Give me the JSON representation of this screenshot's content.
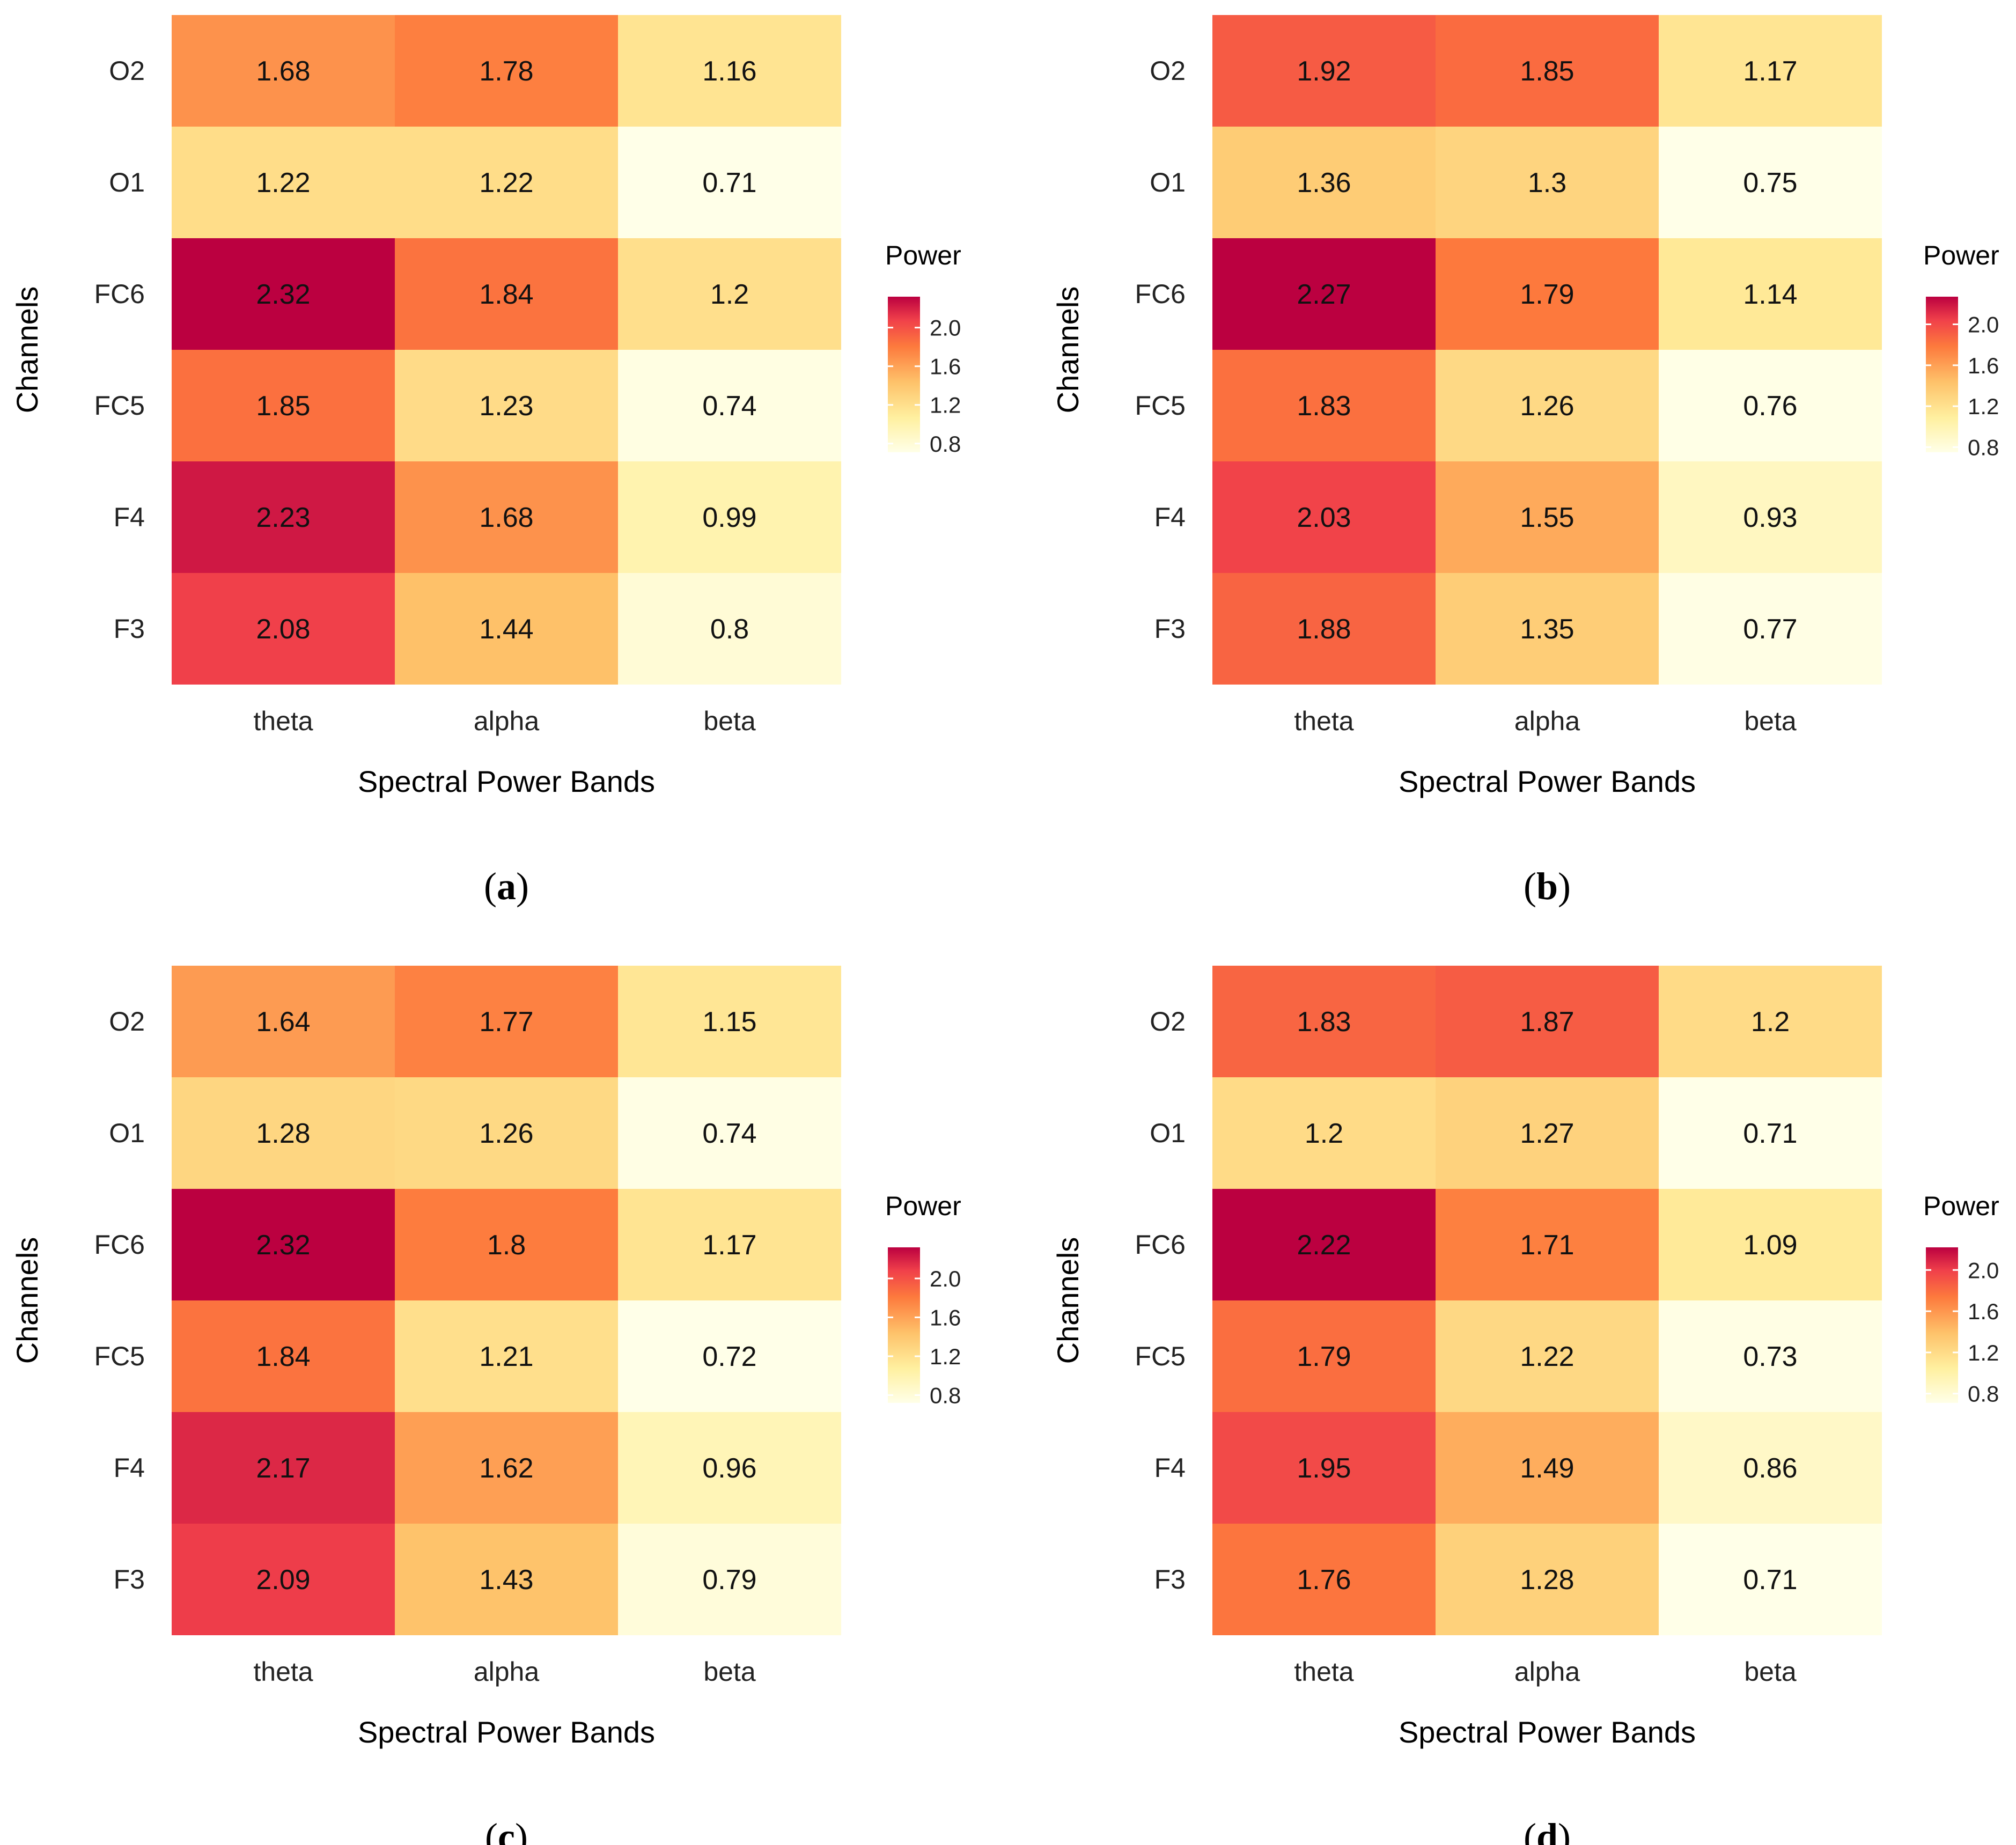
{
  "chart_data": [
    {
      "type": "heatmap",
      "panel_label": "a",
      "x_categories": [
        "theta",
        "alpha",
        "beta"
      ],
      "y_categories": [
        "O2",
        "O1",
        "FC6",
        "FC5",
        "F4",
        "F3"
      ],
      "values": [
        [
          1.68,
          1.78,
          1.16
        ],
        [
          1.22,
          1.22,
          0.71
        ],
        [
          2.32,
          1.84,
          1.2
        ],
        [
          1.85,
          1.23,
          0.74
        ],
        [
          2.23,
          1.68,
          0.99
        ],
        [
          2.08,
          1.44,
          0.8
        ]
      ],
      "xlabel": "Spectral Power Bands",
      "ylabel": "Channels",
      "legend_title": "Power",
      "legend_ticks": [
        "2.0",
        "1.6",
        "1.2",
        "0.8"
      ],
      "color_range": [
        0.71,
        2.32
      ]
    },
    {
      "type": "heatmap",
      "panel_label": "b",
      "x_categories": [
        "theta",
        "alpha",
        "beta"
      ],
      "y_categories": [
        "O2",
        "O1",
        "FC6",
        "FC5",
        "F4",
        "F3"
      ],
      "values": [
        [
          1.92,
          1.85,
          1.17
        ],
        [
          1.36,
          1.3,
          0.75
        ],
        [
          2.27,
          1.79,
          1.14
        ],
        [
          1.83,
          1.26,
          0.76
        ],
        [
          2.03,
          1.55,
          0.93
        ],
        [
          1.88,
          1.35,
          0.77
        ]
      ],
      "xlabel": "Spectral Power Bands",
      "ylabel": "Channels",
      "legend_title": "Power",
      "legend_ticks": [
        "2.0",
        "1.6",
        "1.2",
        "0.8"
      ],
      "color_range": [
        0.75,
        2.27
      ]
    },
    {
      "type": "heatmap",
      "panel_label": "c",
      "x_categories": [
        "theta",
        "alpha",
        "beta"
      ],
      "y_categories": [
        "O2",
        "O1",
        "FC6",
        "FC5",
        "F4",
        "F3"
      ],
      "values": [
        [
          1.64,
          1.77,
          1.15
        ],
        [
          1.28,
          1.26,
          0.74
        ],
        [
          2.32,
          1.8,
          1.17
        ],
        [
          1.84,
          1.21,
          0.72
        ],
        [
          2.17,
          1.62,
          0.96
        ],
        [
          2.09,
          1.43,
          0.79
        ]
      ],
      "xlabel": "Spectral Power Bands",
      "ylabel": "Channels",
      "legend_title": "Power",
      "legend_ticks": [
        "2.0",
        "1.6",
        "1.2",
        "0.8"
      ],
      "color_range": [
        0.72,
        2.32
      ]
    },
    {
      "type": "heatmap",
      "panel_label": "d",
      "x_categories": [
        "theta",
        "alpha",
        "beta"
      ],
      "y_categories": [
        "O2",
        "O1",
        "FC6",
        "FC5",
        "F4",
        "F3"
      ],
      "values": [
        [
          1.83,
          1.87,
          1.2
        ],
        [
          1.2,
          1.27,
          0.71
        ],
        [
          2.22,
          1.71,
          1.09
        ],
        [
          1.79,
          1.22,
          0.73
        ],
        [
          1.95,
          1.49,
          0.86
        ],
        [
          1.76,
          1.28,
          0.71
        ]
      ],
      "xlabel": "Spectral Power Bands",
      "ylabel": "Channels",
      "legend_title": "Power",
      "legend_ticks": [
        "2.0",
        "1.6",
        "1.2",
        "0.8"
      ],
      "color_range": [
        0.71,
        2.22
      ]
    }
  ],
  "colors": {
    "low": "#ffffe8",
    "mid_low": "#fff0a0",
    "mid": "#fec26a",
    "mid_high": "#fd7a3d",
    "high": "#f0404a",
    "max": "#bb0040"
  }
}
